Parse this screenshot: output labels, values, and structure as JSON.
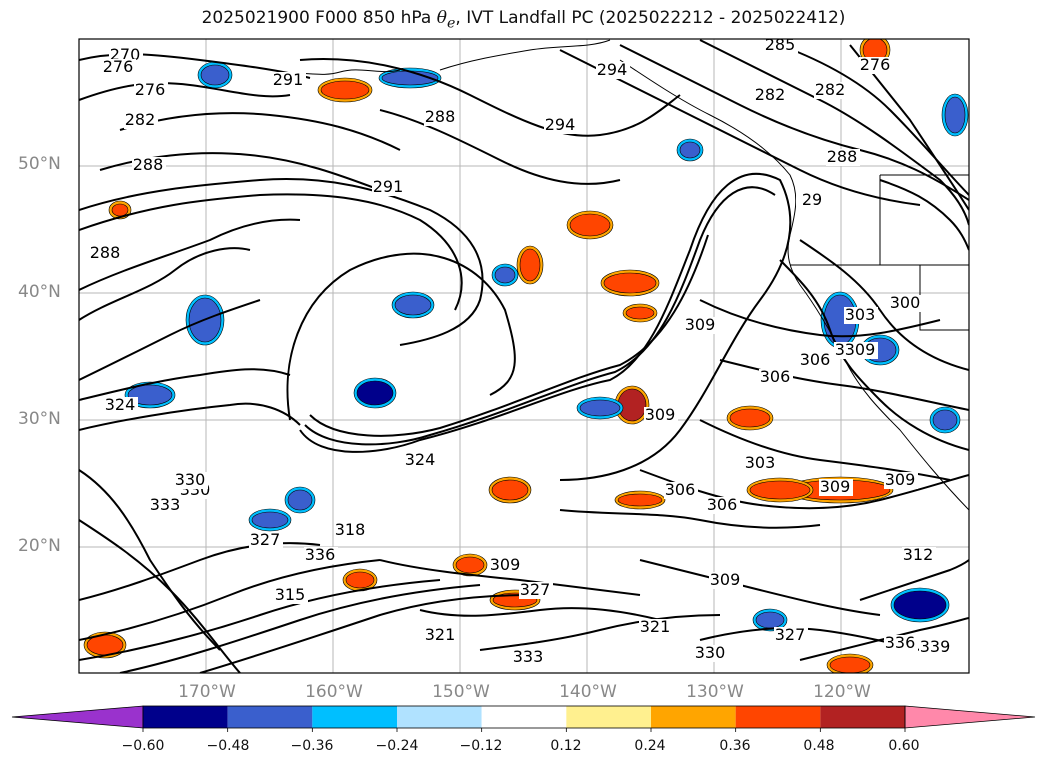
{
  "title_prefix": "2025021900 F000 850 hPa ",
  "title_theta": "θ",
  "title_sub": "e",
  "title_suffix": ", IVT Landfall PC (2025022212 - 2025022412)",
  "lat_labels": [
    "50°N",
    "40°N",
    "30°N",
    "20°N"
  ],
  "lon_labels": [
    "170°W",
    "160°W",
    "150°W",
    "140°W",
    "130°W",
    "120°W"
  ],
  "contour_labels": [
    "270",
    "276",
    "276",
    "282",
    "288",
    "288",
    "291",
    "291",
    "288",
    "294",
    "294",
    "285",
    "282",
    "282",
    "276",
    "288",
    "29",
    "303",
    "300",
    "303",
    "306",
    "309",
    "309",
    "306",
    "303",
    "309",
    "309",
    "306",
    "306",
    "309",
    "324",
    "324",
    "330",
    "333",
    "336",
    "327",
    "309",
    "309",
    "321",
    "327",
    "330",
    "333",
    "336",
    "339",
    "312",
    "315",
    "318",
    "321",
    "327",
    "330"
  ],
  "colorbar": {
    "tick_labels": [
      "−0.60",
      "−0.48",
      "−0.36",
      "−0.24",
      "−0.12",
      "0.12",
      "0.24",
      "0.36",
      "0.48",
      "0.60"
    ],
    "colors": [
      "#9a32cd",
      "#00008b",
      "#3a5fcd",
      "#00bfff",
      "#b0e2ff",
      "#ffffff",
      "#fff08f",
      "#ffa500",
      "#ff4500",
      "#b22222",
      "#ff88aa"
    ]
  },
  "colors": {
    "contour": "#000000",
    "grid": "#999999",
    "coast": "#000000"
  }
}
